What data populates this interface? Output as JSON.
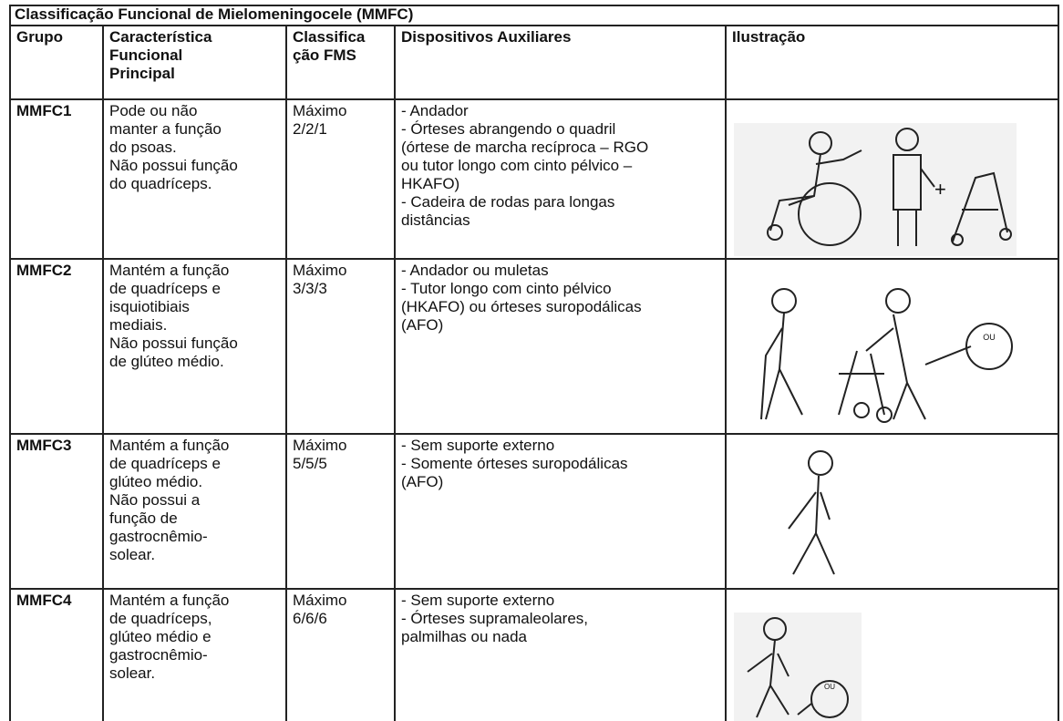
{
  "table": {
    "title": "Classificação Funcional de Mielomeningocele (MMFC)",
    "header": [
      [
        "Grupo"
      ],
      [
        "Característica",
        "Funcional",
        "Principal"
      ],
      [
        "Classifica",
        "ção FMS"
      ],
      [
        "Dispositivos Auxiliares"
      ],
      [
        "Ilustração"
      ]
    ],
    "rows": [
      [
        [
          "MMFC1"
        ],
        [
          "Pode ou não",
          "manter a função",
          "do psoas.",
          "Não possui função",
          "do quadríceps."
        ],
        [
          "Máximo",
          "2/2/1"
        ],
        [
          "- Andador",
          "- Órteses abrangendo o quadril",
          "(órtese de marcha recíproca – RGO",
          "ou tutor longo com cinto pélvico –",
          "HKAFO)",
          "- Cadeira de rodas para longas",
          "distâncias"
        ]
      ],
      [
        [
          "MMFC2"
        ],
        [
          "Mantém a função",
          "de quadríceps e",
          "isquiotibiais",
          "mediais.",
          "Não possui função",
          "de glúteo médio."
        ],
        [
          "Máximo",
          "3/3/3"
        ],
        [
          "- Andador ou muletas",
          "- Tutor longo com cinto pélvico",
          "(HKAFO) ou órteses suropodálicas",
          "(AFO)"
        ]
      ],
      [
        [
          "MMFC3"
        ],
        [
          "Mantém a função",
          "de quadríceps e",
          "glúteo médio.",
          "Não possui a",
          "função de",
          "gastrocnêmio-",
          "solear."
        ],
        [
          "Máximo",
          "5/5/5"
        ],
        [
          "- Sem suporte externo",
          "- Somente órteses suropodálicas",
          "(AFO)"
        ]
      ],
      [
        [
          "MMFC4"
        ],
        [
          "Mantém a função",
          "de quadríceps,",
          "glúteo médio e",
          "gastrocnêmio-",
          "solear."
        ],
        [
          "Máximo",
          "6/6/6"
        ],
        [
          "- Sem suporte externo",
          "- Órteses supramaleolares,",
          "palmilhas ou nada"
        ]
      ]
    ],
    "callout_texts": [
      "OU",
      "OU"
    ]
  }
}
